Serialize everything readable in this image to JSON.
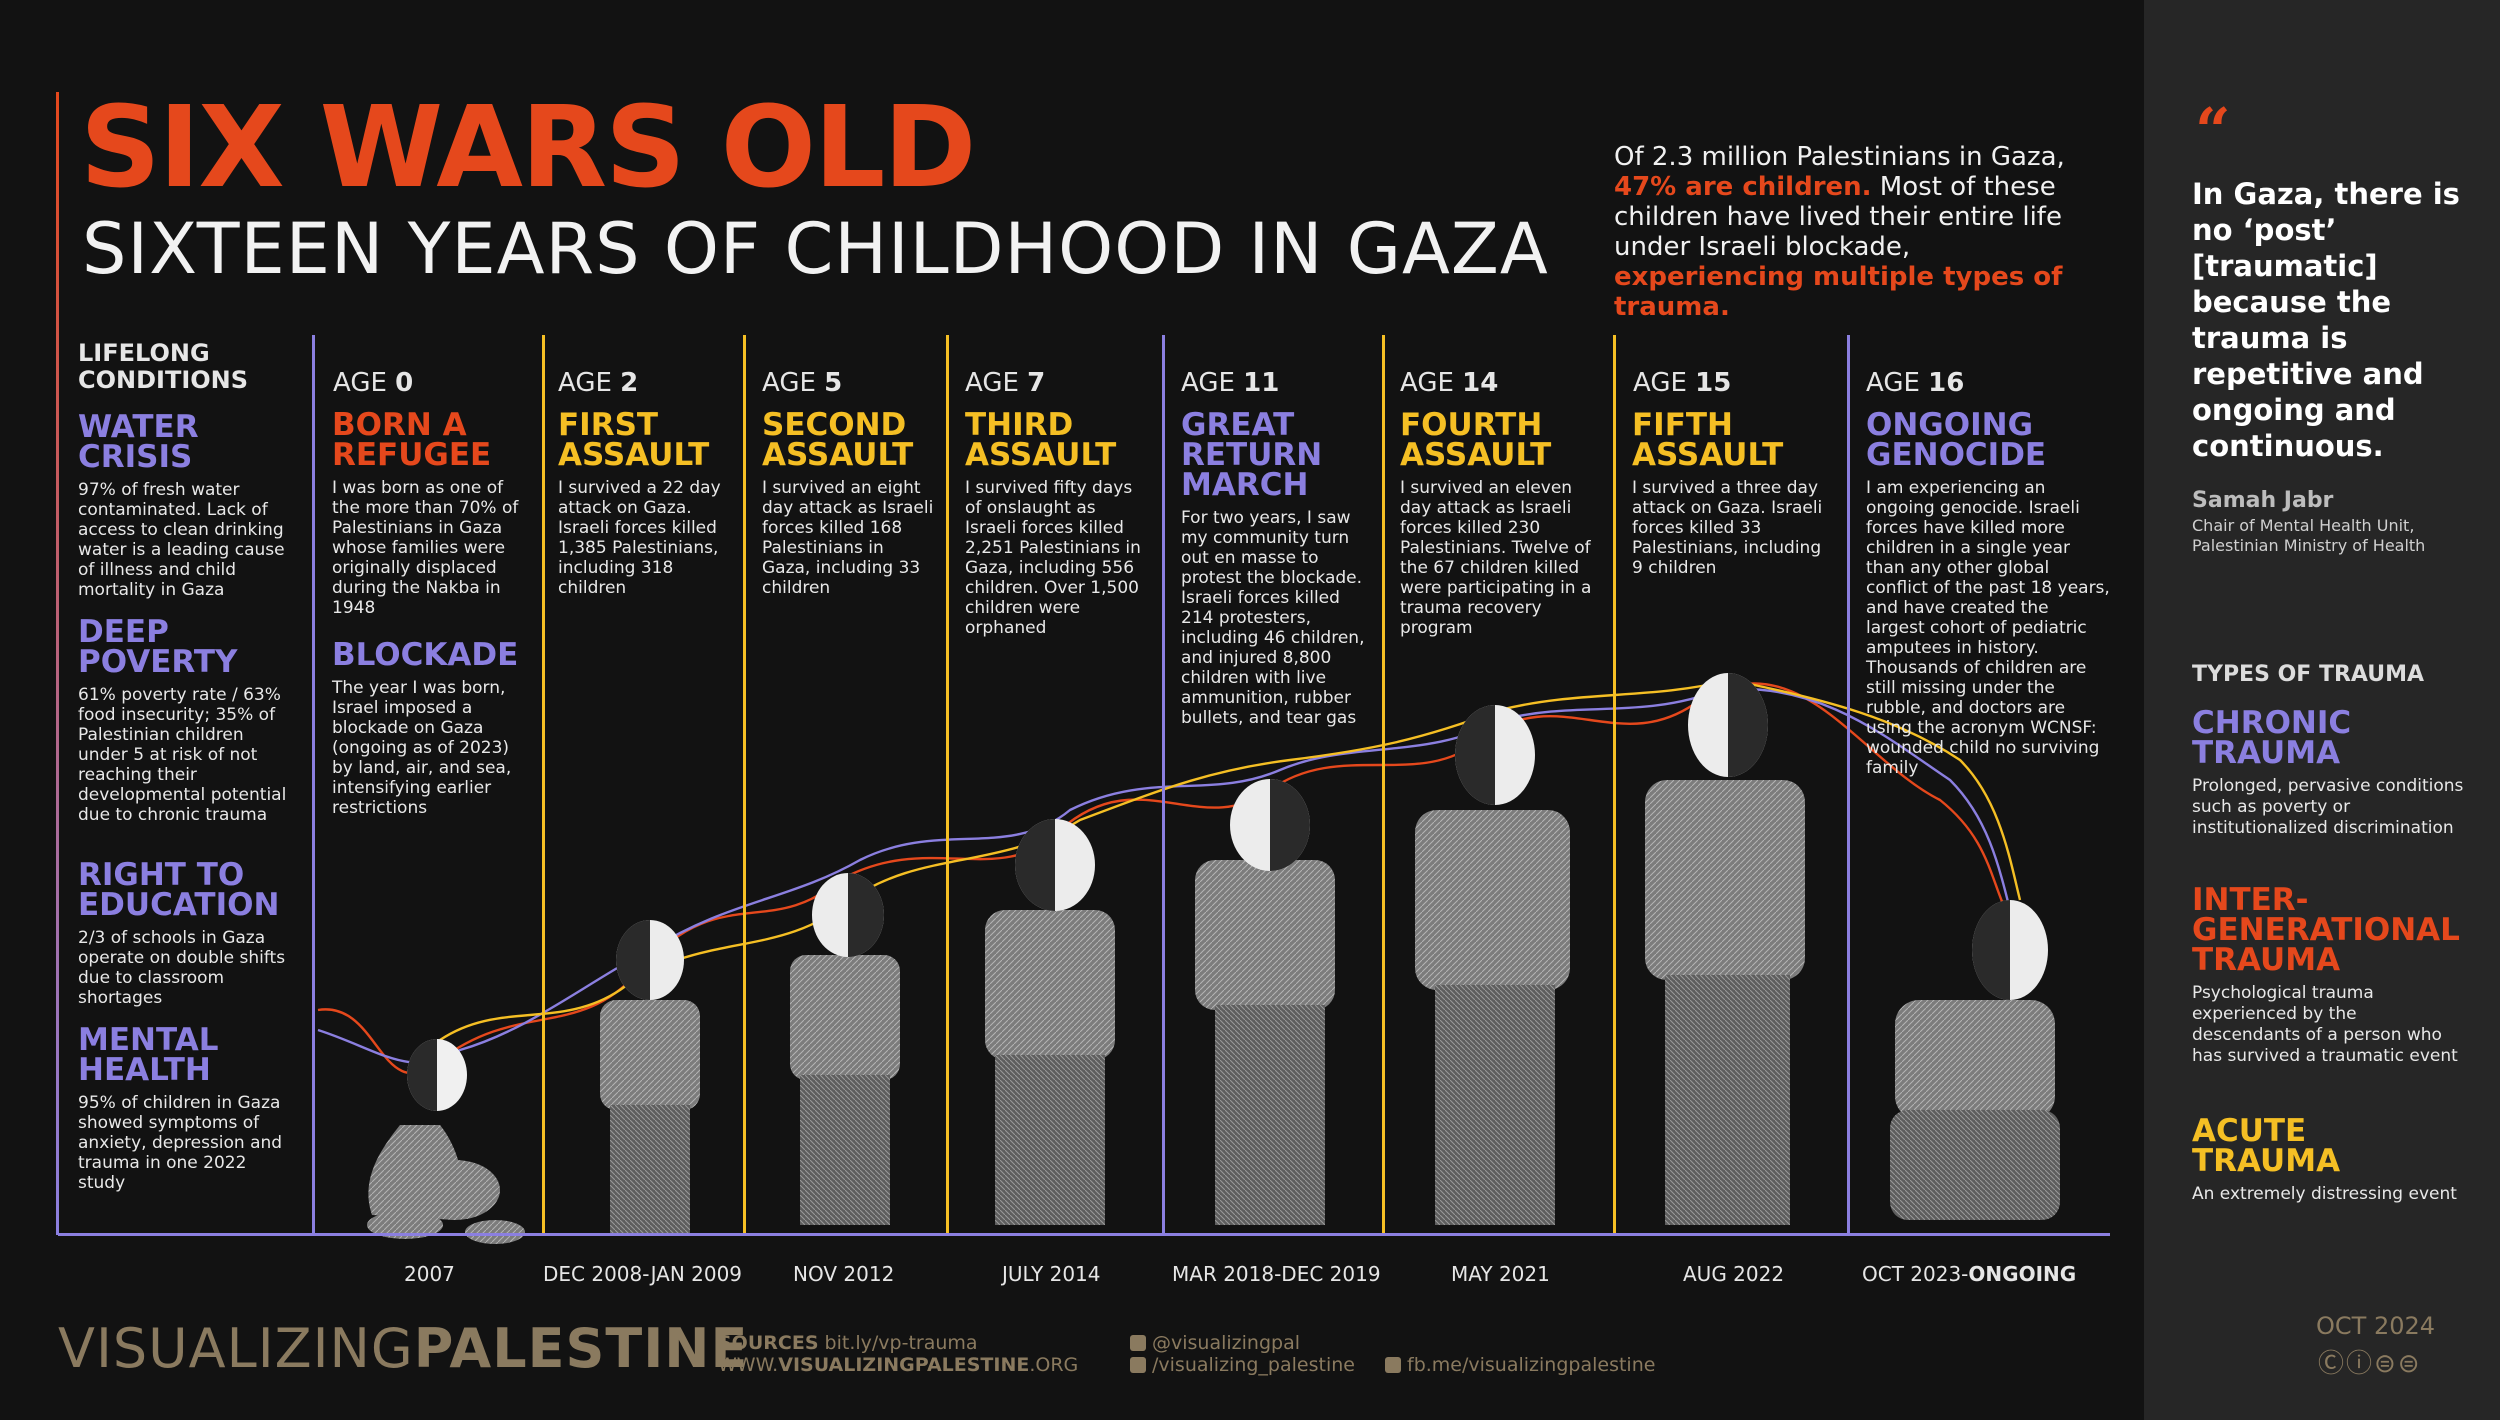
{
  "title": "SIX WARS OLD",
  "subtitle": "SIXTEEN YEARS OF CHILDHOOD IN GAZA",
  "intro": {
    "p1": "Of 2.3 million Palestinians in Gaza, ",
    "h1": "47% are children.",
    "p2": " Most of these children have lived their entire life under Israeli blockade, ",
    "h2": "experiencing multiple types of trauma."
  },
  "lifelong": {
    "heading_line1": "LIFELONG",
    "heading_line2": "CONDITIONS",
    "items": [
      {
        "title_line1": "WATER",
        "title_line2": "CRISIS",
        "text": "97% of fresh water contaminated. Lack of access to clean drinking water is a leading cause of illness and child mortality in Gaza"
      },
      {
        "title_line1": "DEEP",
        "title_line2": "POVERTY",
        "text": "61% poverty rate / 63% food insecurity; 35% of Palestinian children under 5 at risk of not reaching their developmental potential due to chronic trauma"
      },
      {
        "title_line1": "RIGHT TO",
        "title_line2": "EDUCATION",
        "text": "2/3 of schools in Gaza operate on double shifts due to classroom shortages"
      },
      {
        "title_line1": "MENTAL",
        "title_line2": "HEALTH",
        "text": "95% of children in Gaza showed symptoms of anxiety, depression and trauma in one 2022 study"
      }
    ]
  },
  "age_prefix": "AGE",
  "events": [
    {
      "age": "0",
      "title_line1": "BORN A",
      "title_line2": "REFUGEE",
      "title_line3": "",
      "text": "I was born as one of the more than 70% of Palestinians in Gaza whose families were originally displaced during the Nakba in 1948",
      "sub_title": "BLOCKADE",
      "sub_text": "The year I was born, Israel imposed a blockade on Gaza (ongoing as of 2023) by land, air, and sea, intensifying earlier restrictions",
      "date": "2007",
      "date_bold": ""
    },
    {
      "age": "2",
      "title_line1": "FIRST",
      "title_line2": "ASSAULT",
      "title_line3": "",
      "text": "I survived a 22 day attack on Gaza. Israeli forces killed 1,385 Palestinians, including 318 children",
      "date": "DEC 2008-JAN 2009",
      "date_bold": ""
    },
    {
      "age": "5",
      "title_line1": "SECOND",
      "title_line2": "ASSAULT",
      "title_line3": "",
      "text": "I survived an eight day attack as Israeli forces killed 168 Palestinians in Gaza, including 33 children",
      "date": "NOV 2012",
      "date_bold": ""
    },
    {
      "age": "7",
      "title_line1": "THIRD",
      "title_line2": "ASSAULT",
      "title_line3": "",
      "text": "I survived fifty days of onslaught as Israeli forces killed 2,251 Palestinians in Gaza, including 556 children. Over 1,500 children were orphaned",
      "date": "JULY 2014",
      "date_bold": ""
    },
    {
      "age": "11",
      "title_line1": "GREAT",
      "title_line2": "RETURN",
      "title_line3": "MARCH",
      "text": "For two years, I saw my community turn out en masse to protest the blockade. Israeli forces killed 214 protesters, including 46 children, and injured 8,800 children with live ammunition, rubber bullets, and tear gas",
      "date": "MAR 2018-DEC 2019",
      "date_bold": ""
    },
    {
      "age": "14",
      "title_line1": "FOURTH",
      "title_line2": "ASSAULT",
      "title_line3": "",
      "text": "I survived an eleven day attack as Israeli forces killed 230 Palestinians. Twelve of the 67 children killed were participating in a trauma recovery program",
      "date": "MAY 2021",
      "date_bold": ""
    },
    {
      "age": "15",
      "title_line1": "FIFTH",
      "title_line2": "ASSAULT",
      "title_line3": "",
      "text": "I survived a three day attack on Gaza. Israeli forces killed 33 Palestinians, including 9 children",
      "date": "AUG 2022",
      "date_bold": ""
    },
    {
      "age": "16",
      "title_line1": "ONGOING",
      "title_line2": "GENOCIDE",
      "title_line3": "",
      "text": "I am experiencing an ongoing genocide. Israeli forces have killed more children in a single year than any other global conflict of the past 18 years, and have created the largest cohort of pediatric amputees in history. Thousands of children are still missing under the rubble, and doctors are using the acronym WCNSF: wounded child no surviving family",
      "date": "OCT 2023-",
      "date_bold": "ONGOING"
    }
  ],
  "quote": {
    "mark": "“",
    "text": "In Gaza, there is no ‘post’ [traumatic] because the trauma is repetitive and ongoing and continuous.",
    "name": "Samah Jabr",
    "role": "Chair of Mental Health Unit, Palestinian Ministry of Health"
  },
  "types": {
    "heading": "TYPES OF TRAUMA",
    "items": [
      {
        "line1": "CHRONIC",
        "line2": "TRAUMA",
        "line3": "",
        "text": "Prolonged, pervasive conditions such as poverty or institutionalized discrimination"
      },
      {
        "line1": "INTER-",
        "line2": "GENERATIONAL",
        "line3": "TRAUMA",
        "text": "Psychological trauma experienced by the descendants of a person who has survived a traumatic event"
      },
      {
        "line1": "ACUTE",
        "line2": "TRAUMA",
        "line3": "",
        "text": "An extremely distressing event"
      }
    ]
  },
  "footer": {
    "logo_light": "VISUALIZING",
    "logo_bold": "PALESTINE",
    "sources_label": "SOURCES",
    "sources_link": " bit.ly/vp-trauma",
    "site_light1": "WWW.",
    "site_bold": "VISUALIZINGPALESTINE",
    "site_light2": ".ORG",
    "twitter": "@visualizingpal",
    "instagram": "/visualizing_palestine",
    "facebook": "fb.me/visualizingpalestine",
    "date": "OCT 2024",
    "license": "Ⓒⓘ⊜⊜"
  },
  "colors": {
    "orange": "#e5481c",
    "purple": "#8b7fe0",
    "yellow": "#f5bf24"
  }
}
